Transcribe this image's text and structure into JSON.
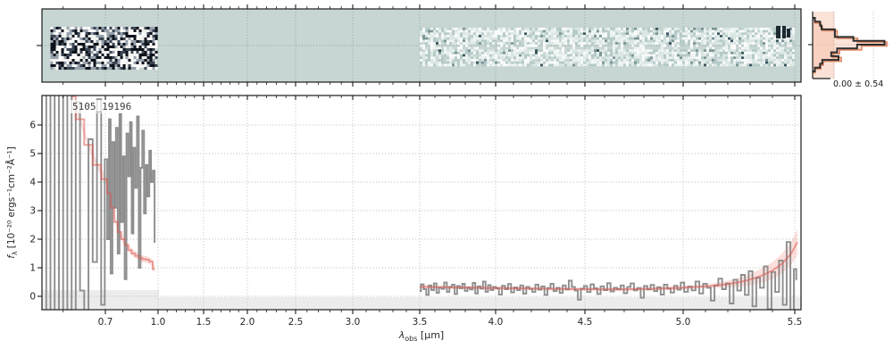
{
  "chart_data": {
    "type": "line",
    "id_label": "5105_19196",
    "xlabel": "λ_obs [μm]",
    "ylabel": "f_λ [10⁻²⁰ ergs⁻¹cm⁻²Å⁻¹]",
    "x_scale": "nonlinear (NIRSpec prism dispersion)",
    "xlim": [
      0.55,
      5.56
    ],
    "ylim": [
      -0.47,
      7.0
    ],
    "grid": "dotted",
    "x_tick_labels": [
      "0.7",
      "1.0",
      "1.5",
      "2.0",
      "2.5",
      "3.0",
      "3.5",
      "4.0",
      "4.5",
      "5.0",
      "5.5"
    ],
    "x_ticks": [
      0.7,
      1.0,
      1.5,
      2.0,
      2.5,
      3.0,
      3.5,
      4.0,
      4.5,
      5.0,
      5.5
    ],
    "y_tick_labels": [
      "0",
      "1",
      "2",
      "3",
      "4",
      "5",
      "6"
    ],
    "y_ticks": [
      0,
      1,
      2,
      3,
      4,
      5,
      6
    ],
    "series": [
      {
        "name": "observed-spectrum-blue-segment",
        "role": "data",
        "color": "#8e8e8e",
        "wave_start": 0.555,
        "wave_step": 0.01,
        "flux": [
          7.3,
          -0.6,
          7.3,
          -0.6,
          7.3,
          -0.6,
          7.3,
          -0.6,
          6.8,
          0.2,
          -0.6,
          5.5,
          1.2,
          6.9,
          -0.3,
          4.8,
          2.0,
          6.2,
          0.8,
          5.4,
          3.1,
          5.9,
          1.5,
          6.4,
          2.6,
          4.9,
          0.6,
          5.7,
          4.2,
          6.1,
          2.2,
          5.2,
          3.8,
          6.3,
          1.0,
          4.5,
          5.8,
          2.9,
          4.6,
          3.5,
          5.1,
          4.0,
          4.4,
          1.9
        ]
      },
      {
        "name": "model-spectrum-blue-segment",
        "role": "model",
        "color": "rgba(217,90,82,0.55)",
        "wave_start": 0.62,
        "wave_step": 0.02,
        "err_const": 0.12,
        "flux": [
          7.0,
          6.2,
          5.3,
          4.6,
          4.1,
          3.6,
          3.1,
          2.6,
          2.25,
          2.0,
          1.8,
          1.62,
          1.5,
          1.42,
          1.35,
          1.3,
          1.28,
          1.22,
          0.95
        ]
      },
      {
        "name": "observed-spectrum-red-segment",
        "role": "data",
        "color": "#8e8e8e",
        "wave_start": 3.5,
        "wave_step": 0.017,
        "flux": [
          0.18,
          0.42,
          0.25,
          0.05,
          0.38,
          0.22,
          0.45,
          0.12,
          0.3,
          0.26,
          0.48,
          0.15,
          0.33,
          0.41,
          0.08,
          0.36,
          0.28,
          0.44,
          0.19,
          0.31,
          0.24,
          0.47,
          0.1,
          0.35,
          0.27,
          0.52,
          0.16,
          0.39,
          0.22,
          0.33,
          0.28,
          0.06,
          0.37,
          0.25,
          0.43,
          0.14,
          0.31,
          0.22,
          0.38,
          0.09,
          0.33,
          0.26,
          0.15,
          0.41,
          0.23,
          0.35,
          0.05,
          0.29,
          0.44,
          0.18,
          0.3,
          0.12,
          0.38,
          0.24,
          0.55,
          0.33,
          0.2,
          -0.12,
          0.27,
          0.36,
          0.15,
          0.42,
          0.28,
          0.08,
          0.35,
          0.22,
          0.46,
          0.17,
          0.3,
          0.25,
          0.38,
          0.11,
          0.33,
          0.45,
          0.21,
          0.29,
          -0.05,
          0.36,
          0.24,
          0.4,
          0.18,
          0.32,
          0.06,
          0.41,
          0.27,
          0.13,
          0.37,
          0.23,
          0.48,
          0.16,
          0.34,
          0.21,
          0.52,
          0.1,
          0.44,
          0.3,
          -0.15,
          0.38,
          0.62,
          0.25,
          0.45,
          -0.25,
          0.58,
          0.2,
          0.75,
          0.05,
          0.88,
          -0.35,
          0.65,
          0.3,
          1.05,
          -0.45,
          0.85,
          0.15,
          1.25,
          -0.3,
          1.9,
          -0.55,
          0.95,
          0.6
        ]
      },
      {
        "name": "model-spectrum-red-segment",
        "role": "model",
        "color": "rgba(217,90,82,0.55)",
        "wave_start": 3.5,
        "wave_step": 0.0405,
        "flux": [
          0.33,
          0.33,
          0.32,
          0.32,
          0.32,
          0.31,
          0.31,
          0.31,
          0.3,
          0.3,
          0.3,
          0.29,
          0.29,
          0.29,
          0.28,
          0.28,
          0.28,
          0.27,
          0.27,
          0.27,
          0.26,
          0.26,
          0.26,
          0.25,
          0.25,
          0.25,
          0.25,
          0.24,
          0.24,
          0.24,
          0.25,
          0.25,
          0.26,
          0.26,
          0.27,
          0.28,
          0.29,
          0.3,
          0.32,
          0.34,
          0.36,
          0.39,
          0.43,
          0.48,
          0.55,
          0.64,
          0.76,
          0.92,
          1.15,
          1.5,
          1.9
        ],
        "err": [
          0.06,
          0.06,
          0.06,
          0.06,
          0.06,
          0.06,
          0.06,
          0.06,
          0.06,
          0.06,
          0.06,
          0.06,
          0.06,
          0.06,
          0.06,
          0.06,
          0.06,
          0.06,
          0.06,
          0.06,
          0.06,
          0.06,
          0.06,
          0.06,
          0.06,
          0.06,
          0.06,
          0.06,
          0.06,
          0.06,
          0.06,
          0.06,
          0.06,
          0.06,
          0.06,
          0.06,
          0.06,
          0.06,
          0.06,
          0.06,
          0.08,
          0.1,
          0.12,
          0.15,
          0.18,
          0.22,
          0.26,
          0.3,
          0.35,
          0.4,
          0.45
        ]
      }
    ],
    "spec2d": {
      "background": "#c7d6d3",
      "blocks": [
        {
          "name": "short-wavelength-cutout",
          "wave_min": 0.57,
          "wave_max": 0.99,
          "style": "high-contrast-dark"
        },
        {
          "name": "long-wavelength-cutout",
          "wave_min": 3.5,
          "wave_max": 5.5,
          "style": "faint-teal"
        }
      ]
    },
    "histogram": {
      "orientation": "horizontal",
      "stats": "0.00 ± 0.54",
      "values": [
        0.03,
        0.1,
        0.12,
        0.3,
        0.3,
        0.55,
        0.97,
        0.6,
        0.33,
        0.25,
        0.35,
        0.13,
        0.1,
        0.03
      ],
      "band_fraction": 0.3,
      "line_color_dark": "#2e2e2e",
      "line_color_salmon": "#e08a68",
      "band_fill": "#fbdfd4"
    },
    "colors": {
      "spectrum_gray": "#8e8e8e",
      "model_red": "#d95a52",
      "model_band": "rgba(246,158,150,0.33)",
      "grid": "#b8b8b8",
      "spec2d_bg": "#c7d6d3",
      "below_zero_band": "#ececec"
    }
  },
  "axes": {
    "ylabel": {
      "f": "f",
      "sub": "λ",
      "rest": " [10⁻²⁰ ergs⁻¹cm⁻²Å⁻¹]"
    },
    "xlabel": {
      "sym": "λ",
      "sub": "obs",
      "rest": " [μm]"
    }
  }
}
